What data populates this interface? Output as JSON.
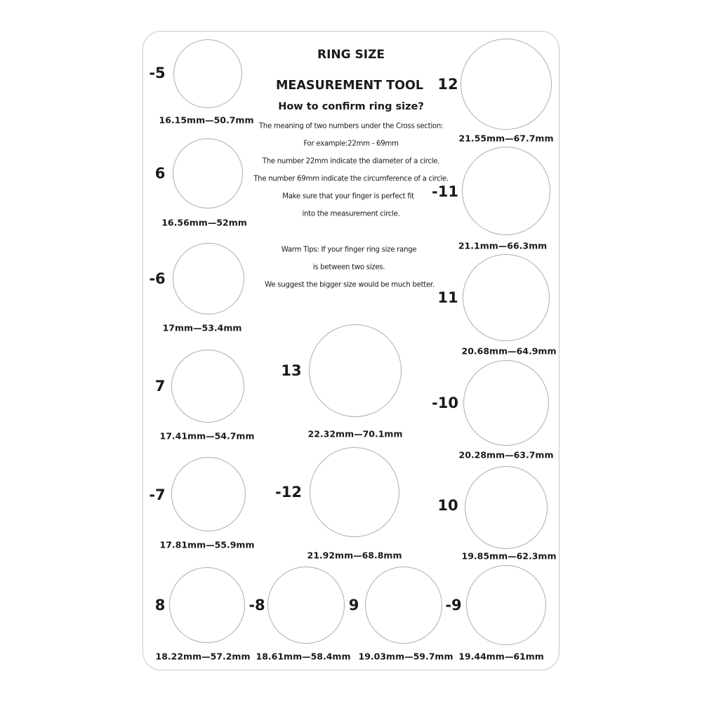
{
  "title_line1": "RING SIZE",
  "title_line2": "MEASUREMENT TOOL",
  "subtitle": "How to confirm ring size?",
  "instructions": [
    "The meaning of two numbers under the Cross section:",
    "For example:22mm - 69mm",
    "The number 22mm indicate the diameter of a circle.",
    "The number 69mm indicate the circumference of a circle.",
    "Make sure that your finger is perfect fit",
    "into the measurement circle."
  ],
  "tips": [
    "Warm Tips: If your finger ring size range",
    "is between two sizes.",
    "We suggest the bigger size would be much better."
  ],
  "circle_color": "#b4aaad",
  "sizes": [
    {
      "size": "-5",
      "diameter_mm": 16.15,
      "caption": "16.15mm—50.7mm"
    },
    {
      "size": "6",
      "diameter_mm": 16.56,
      "caption": "16.56mm—52mm"
    },
    {
      "size": "-6",
      "diameter_mm": 17,
      "caption": "17mm—53.4mm"
    },
    {
      "size": "7",
      "diameter_mm": 17.41,
      "caption": "17.41mm—54.7mm"
    },
    {
      "size": "-7",
      "diameter_mm": 17.81,
      "caption": "17.81mm—55.9mm"
    },
    {
      "size": "8",
      "diameter_mm": 18.22,
      "caption": "18.22mm—57.2mm"
    },
    {
      "size": "-8",
      "diameter_mm": 18.61,
      "caption": "18.61mm—58.4mm"
    },
    {
      "size": "9",
      "diameter_mm": 19.03,
      "caption": "19.03mm—59.7mm"
    },
    {
      "size": "-9",
      "diameter_mm": 19.44,
      "caption": "19.44mm—61mm"
    },
    {
      "size": "10",
      "diameter_mm": 19.85,
      "caption": "19.85mm—62.3mm"
    },
    {
      "size": "-10",
      "diameter_mm": 20.28,
      "caption": "20.28mm—63.7mm"
    },
    {
      "size": "11",
      "diameter_mm": 20.68,
      "caption": "20.68mm—64.9mm"
    },
    {
      "size": "-11",
      "diameter_mm": 21.1,
      "caption": "21.1mm—66.3mm"
    },
    {
      "size": "12",
      "diameter_mm": 21.55,
      "caption": "21.55mm—67.7mm"
    },
    {
      "size": "-12",
      "diameter_mm": 21.92,
      "caption": "21.92mm—68.8mm"
    },
    {
      "size": "13",
      "diameter_mm": 22.32,
      "caption": "22.32mm—70.1mm"
    }
  ]
}
